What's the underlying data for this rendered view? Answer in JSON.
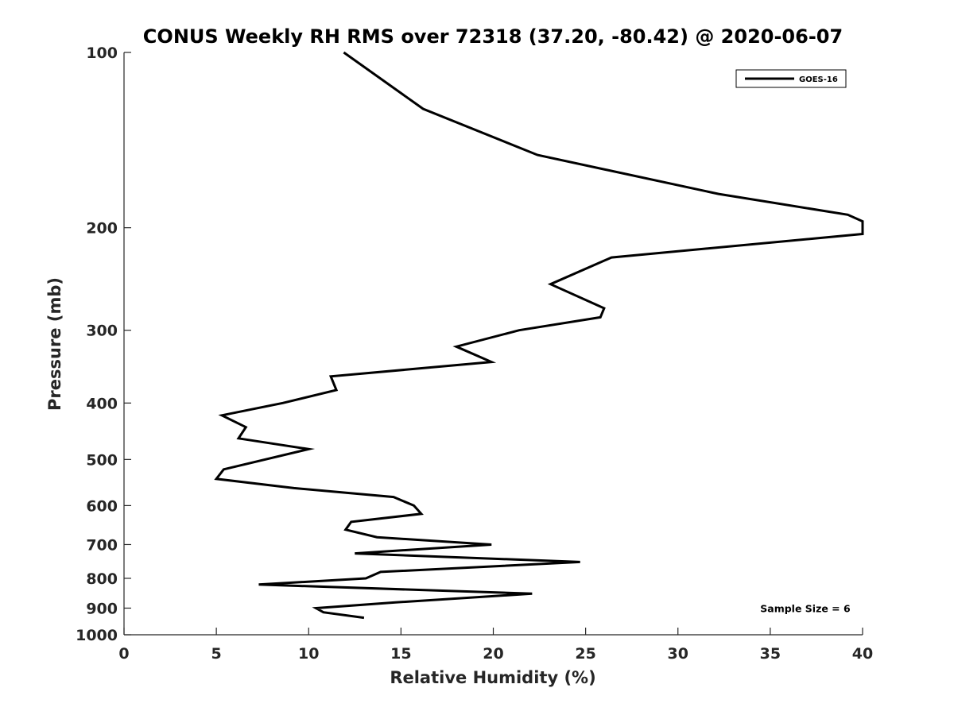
{
  "chart_data": {
    "type": "line",
    "title": "CONUS Weekly RH RMS over 72318 (37.20, -80.42) @ 2020-06-07",
    "xlabel": "Relative Humidity (%)",
    "ylabel": "Pressure (mb)",
    "xlim": [
      0,
      40
    ],
    "ylim": [
      1000,
      100
    ],
    "y_scale": "log",
    "grid": false,
    "legend_position": "top-right",
    "x_ticks": [
      "0",
      "5",
      "10",
      "15",
      "20",
      "25",
      "30",
      "35",
      "40"
    ],
    "y_ticks": [
      "100",
      "200",
      "300",
      "400",
      "500",
      "600",
      "700",
      "800",
      "900",
      "1000"
    ],
    "series": [
      {
        "name": "GOES-16",
        "color": "#000000",
        "points": [
          [
            11.9,
            100
          ],
          [
            16.2,
            125
          ],
          [
            22.4,
            150
          ],
          [
            32.2,
            175
          ],
          [
            39.2,
            190
          ],
          [
            40.0,
            195
          ],
          [
            40.0,
            205
          ],
          [
            26.4,
            225
          ],
          [
            23.1,
            250
          ],
          [
            26.0,
            275
          ],
          [
            25.8,
            285
          ],
          [
            21.4,
            300
          ],
          [
            18.0,
            320
          ],
          [
            19.9,
            340
          ],
          [
            11.2,
            360
          ],
          [
            11.5,
            380
          ],
          [
            8.6,
            400
          ],
          [
            5.3,
            420
          ],
          [
            6.6,
            440
          ],
          [
            6.2,
            460
          ],
          [
            10.0,
            480
          ],
          [
            5.4,
            520
          ],
          [
            5.0,
            540
          ],
          [
            9.2,
            560
          ],
          [
            14.6,
            580
          ],
          [
            15.7,
            600
          ],
          [
            16.1,
            620
          ],
          [
            12.3,
            640
          ],
          [
            12.0,
            660
          ],
          [
            13.7,
            680
          ],
          [
            19.9,
            700
          ],
          [
            12.5,
            725
          ],
          [
            24.7,
            750
          ],
          [
            13.9,
            780
          ],
          [
            13.1,
            800
          ],
          [
            7.3,
            820
          ],
          [
            22.1,
            850
          ],
          [
            14.7,
            880
          ],
          [
            10.4,
            900
          ],
          [
            10.8,
            915
          ],
          [
            13.0,
            935
          ]
        ]
      }
    ],
    "annotations": [
      {
        "text": "Sample Size = 6",
        "x": 36.9,
        "y": 900
      }
    ]
  }
}
